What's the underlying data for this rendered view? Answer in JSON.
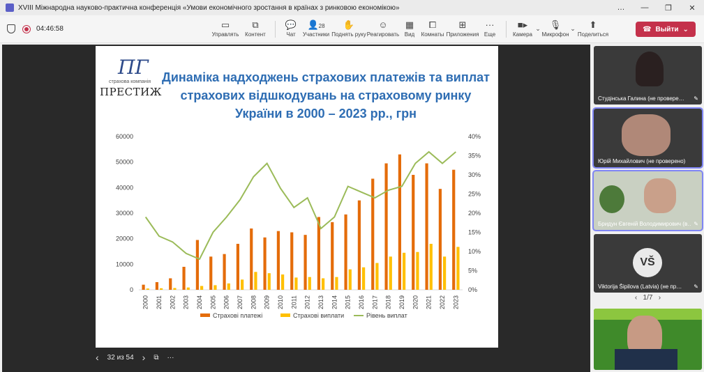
{
  "window": {
    "title": "XVIII Міжнародна науково-практична конференція «Умови економічного зростання в країнах з ринковою економікою»",
    "controls": [
      "…",
      "—",
      "❐",
      "✕"
    ]
  },
  "toolbar": {
    "timer": "04:46:58",
    "items": [
      {
        "label": "Управлять",
        "icon": "share-screen-icon"
      },
      {
        "label": "Контент",
        "icon": "content-icon"
      },
      {
        "label": "Чат",
        "icon": "chat-icon"
      },
      {
        "label": "Участники",
        "icon": "people-icon",
        "badge": "28"
      },
      {
        "label": "Поднять руку",
        "icon": "raise-hand-icon"
      },
      {
        "label": "Реагировать",
        "icon": "react-icon"
      },
      {
        "label": "Вид",
        "icon": "view-icon"
      },
      {
        "label": "Комнаты",
        "icon": "rooms-icon"
      },
      {
        "label": "Приложения",
        "icon": "apps-icon"
      },
      {
        "label": "Еще",
        "icon": "more-icon"
      },
      {
        "label": "Камера",
        "icon": "camera-icon"
      },
      {
        "label": "Микрофон",
        "icon": "mic-off-icon"
      },
      {
        "label": "Поделиться",
        "icon": "share-icon"
      }
    ],
    "leave_label": "Выйти"
  },
  "slide": {
    "logo_sub": "страхова компанія",
    "logo_name": "ПРЕСТИЖ",
    "title": "Динаміка надходжень страхових платежів та виплат страхових відшкодувань на страховому ринку України в 2000 – 2023 рр., грн",
    "nav_text": "32 из 54"
  },
  "chart_data": {
    "type": "bar",
    "categories": [
      "2000",
      "2001",
      "2002",
      "2003",
      "2004",
      "2005",
      "2006",
      "2007",
      "2008",
      "2009",
      "2010",
      "2011",
      "2012",
      "2013",
      "2014",
      "2015",
      "2016",
      "2017",
      "2018",
      "2019",
      "2020",
      "2021",
      "2022",
      "2023"
    ],
    "series": [
      {
        "name": "Страхові платежі",
        "type": "bar",
        "color": "#e46c0a",
        "axis": "left",
        "values": [
          2000,
          3000,
          4500,
          9000,
          19500,
          13000,
          14000,
          18000,
          24000,
          20500,
          23000,
          22500,
          21500,
          28500,
          26500,
          29500,
          35000,
          43500,
          49500,
          53000,
          45000,
          49500,
          39500,
          47000
        ]
      },
      {
        "name": "Страхові виплати",
        "type": "bar",
        "color": "#ffc000",
        "axis": "left",
        "values": [
          500,
          600,
          700,
          900,
          1500,
          1800,
          2500,
          4000,
          7000,
          6500,
          6000,
          4800,
          5000,
          4500,
          5000,
          8000,
          8800,
          10500,
          13000,
          14500,
          14800,
          18000,
          13000,
          16800
        ]
      },
      {
        "name": "Рівень виплат",
        "type": "line",
        "color": "#9bbb59",
        "axis": "right",
        "values": [
          19,
          14,
          12.5,
          9.5,
          8,
          15,
          19,
          23.5,
          29.5,
          33,
          26.5,
          21.5,
          24,
          16,
          19,
          27,
          25.5,
          24,
          26,
          27,
          33,
          36,
          33,
          36
        ]
      }
    ],
    "ylim": [
      0,
      60000
    ],
    "yticks": [
      "0",
      "10000",
      "20000",
      "30000",
      "40000",
      "50000",
      "60000"
    ],
    "y2lim": [
      0,
      40
    ],
    "y2ticks": [
      "0%",
      "5%",
      "10%",
      "15%",
      "20%",
      "25%",
      "30%",
      "35%",
      "40%"
    ],
    "legend_position": "bottom"
  },
  "participants": [
    {
      "name": "Студінська Галина (не провере…",
      "kind": "video",
      "bg": "#6b5a4a",
      "active": false
    },
    {
      "name": "Юрій Михайлович (не проверено)",
      "kind": "video",
      "bg": "#8a8a86",
      "active": true
    },
    {
      "name": "Бридун Євгеній Володимирович (в…",
      "kind": "video",
      "bg": "#b8c4b0",
      "active": true
    },
    {
      "name": "Viktorija Šipilova (Latvia) (не пр…",
      "kind": "avatar",
      "initials": "VŠ",
      "bg": "#3a3a3a",
      "active": false
    },
    {
      "name": "",
      "kind": "video",
      "bg": "#3f8a2a",
      "active": false
    }
  ],
  "pager": {
    "text": "1/7"
  }
}
